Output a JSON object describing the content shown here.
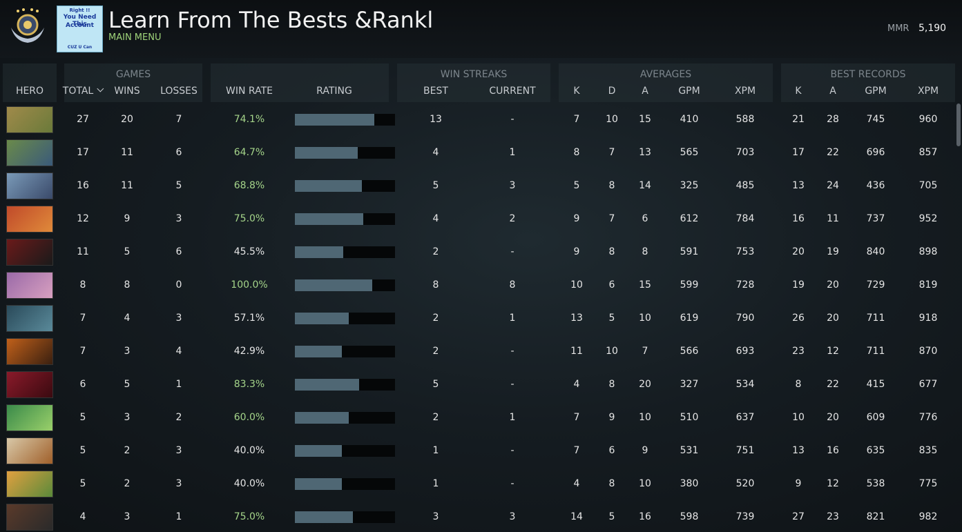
{
  "header": {
    "title": "Learn From The Bests &Rankl",
    "subtitle": "MAIN MENU",
    "mmr_label": "MMR",
    "mmr_value": "5,190",
    "badge": [
      "Right !!",
      "You Need This",
      "Account",
      "CUZ U Can"
    ]
  },
  "table": {
    "groups": [
      "GAMES",
      "WIN STREAKS",
      "AVERAGES",
      "BEST RECORDS"
    ],
    "columns": [
      "HERO",
      "TOTAL",
      "WINS",
      "LOSSES",
      "WIN RATE",
      "RATING",
      "BEST",
      "CURRENT",
      "K",
      "D",
      "A",
      "GPM",
      "XPM",
      "K",
      "A",
      "GPM",
      "XPM"
    ],
    "rows": [
      [
        27,
        20,
        7,
        "74.1%",
        0.79,
        13,
        "-",
        7,
        10,
        15,
        410,
        588,
        21,
        28,
        745,
        960
      ],
      [
        17,
        11,
        6,
        "64.7%",
        0.63,
        4,
        1,
        8,
        7,
        13,
        565,
        703,
        17,
        22,
        696,
        857
      ],
      [
        16,
        11,
        5,
        "68.8%",
        0.67,
        5,
        3,
        5,
        8,
        14,
        325,
        485,
        13,
        24,
        436,
        705
      ],
      [
        12,
        9,
        3,
        "75.0%",
        0.68,
        4,
        2,
        9,
        7,
        6,
        612,
        784,
        16,
        11,
        737,
        952
      ],
      [
        11,
        5,
        6,
        "45.5%",
        0.48,
        2,
        "-",
        9,
        8,
        8,
        591,
        753,
        20,
        19,
        840,
        898
      ],
      [
        8,
        8,
        0,
        "100.0%",
        0.77,
        8,
        8,
        10,
        6,
        15,
        599,
        728,
        19,
        20,
        729,
        819
      ],
      [
        7,
        4,
        3,
        "57.1%",
        0.54,
        2,
        1,
        13,
        5,
        10,
        619,
        790,
        26,
        20,
        711,
        918
      ],
      [
        7,
        3,
        4,
        "42.9%",
        0.47,
        2,
        "-",
        11,
        10,
        7,
        566,
        693,
        23,
        12,
        711,
        870
      ],
      [
        6,
        5,
        1,
        "83.3%",
        0.64,
        5,
        "-",
        4,
        8,
        20,
        327,
        534,
        8,
        22,
        415,
        677
      ],
      [
        5,
        3,
        2,
        "60.0%",
        0.54,
        2,
        1,
        7,
        9,
        10,
        510,
        637,
        10,
        20,
        609,
        776
      ],
      [
        5,
        2,
        3,
        "40.0%",
        0.47,
        1,
        "-",
        7,
        6,
        9,
        531,
        751,
        13,
        16,
        635,
        835
      ],
      [
        5,
        2,
        3,
        "40.0%",
        0.47,
        1,
        "-",
        4,
        8,
        10,
        380,
        520,
        9,
        12,
        538,
        775
      ],
      [
        4,
        3,
        1,
        "75.0%",
        0.58,
        3,
        3,
        14,
        5,
        16,
        598,
        739,
        27,
        23,
        821,
        982
      ]
    ]
  }
}
